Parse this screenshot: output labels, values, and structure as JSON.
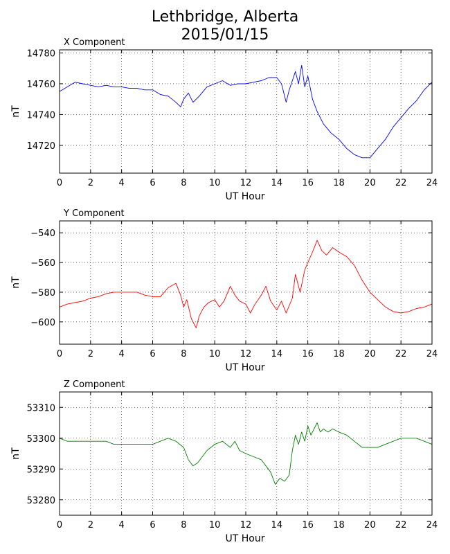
{
  "title_line1": "Lethbridge, Alberta",
  "title_line2": "2015/01/15",
  "chart_data": [
    {
      "type": "line",
      "title": "X Component",
      "xlabel": "UT Hour",
      "ylabel": "nT",
      "xlim": [
        0,
        24
      ],
      "ylim": [
        14702,
        14782
      ],
      "xticks": [
        0,
        2,
        4,
        6,
        8,
        10,
        12,
        14,
        16,
        18,
        20,
        22,
        24
      ],
      "yticks": [
        14720,
        14740,
        14760,
        14780
      ],
      "grid": true,
      "color": "#0000ff",
      "x": [
        0,
        0.5,
        1,
        1.5,
        2,
        2.5,
        3,
        3.5,
        4,
        4.5,
        5,
        5.5,
        6,
        6.5,
        7,
        7.5,
        7.8,
        8,
        8.3,
        8.6,
        9,
        9.5,
        10,
        10.5,
        11,
        11.5,
        12,
        12.5,
        13,
        13.5,
        14,
        14.3,
        14.6,
        14.8,
        15,
        15.2,
        15.4,
        15.6,
        15.8,
        16,
        16.3,
        16.6,
        17,
        17.5,
        18,
        18.5,
        19,
        19.5,
        20,
        20.5,
        21,
        21.5,
        22,
        22.5,
        23,
        23.5,
        24
      ],
      "y": [
        14755,
        14758,
        14761,
        14760,
        14759,
        14758,
        14759,
        14758,
        14758,
        14757,
        14757,
        14756,
        14756,
        14753,
        14752,
        14748,
        14745,
        14750,
        14754,
        14748,
        14752,
        14758,
        14760,
        14762,
        14759,
        14760,
        14760,
        14761,
        14762,
        14764,
        14764,
        14760,
        14748,
        14756,
        14762,
        14768,
        14760,
        14772,
        14758,
        14765,
        14750,
        14742,
        14734,
        14728,
        14724,
        14718,
        14714,
        14712,
        14712,
        14718,
        14724,
        14732,
        14738,
        14744,
        14749,
        14756,
        14761
      ]
    },
    {
      "type": "line",
      "title": "Y Component",
      "xlabel": "UT Hour",
      "ylabel": "nT",
      "xlim": [
        0,
        24
      ],
      "ylim": [
        -615,
        -532
      ],
      "xticks": [
        0,
        2,
        4,
        6,
        8,
        10,
        12,
        14,
        16,
        18,
        20,
        22,
        24
      ],
      "yticks": [
        -540,
        -560,
        -580,
        -600
      ],
      "grid": true,
      "color": "#ff0000",
      "x": [
        0,
        0.5,
        1,
        1.5,
        2,
        2.5,
        3,
        3.5,
        4,
        4.5,
        5,
        5.5,
        6,
        6.5,
        7,
        7.5,
        7.8,
        8,
        8.2,
        8.5,
        8.8,
        9,
        9.3,
        9.6,
        10,
        10.3,
        10.6,
        11,
        11.3,
        11.6,
        12,
        12.3,
        12.6,
        13,
        13.3,
        13.6,
        14,
        14.3,
        14.6,
        15,
        15.2,
        15.5,
        15.8,
        16,
        16.3,
        16.6,
        16.9,
        17.2,
        17.6,
        18,
        18.5,
        19,
        19.5,
        20,
        20.5,
        21,
        21.5,
        22,
        22.5,
        23,
        23.5,
        24
      ],
      "y": [
        -590,
        -588,
        -587,
        -586,
        -584,
        -583,
        -581,
        -580,
        -580,
        -580,
        -580,
        -582,
        -583,
        -583,
        -577,
        -574,
        -582,
        -590,
        -585,
        -598,
        -604,
        -596,
        -590,
        -587,
        -585,
        -590,
        -586,
        -576,
        -582,
        -586,
        -588,
        -594,
        -588,
        -582,
        -576,
        -586,
        -592,
        -586,
        -594,
        -584,
        -568,
        -580,
        -565,
        -560,
        -553,
        -545,
        -552,
        -555,
        -550,
        -553,
        -556,
        -562,
        -572,
        -580,
        -585,
        -590,
        -593,
        -594,
        -593,
        -591,
        -590,
        -588
      ]
    },
    {
      "type": "line",
      "title": "Z Component",
      "xlabel": "UT Hour",
      "ylabel": "nT",
      "xlim": [
        0,
        24
      ],
      "ylim": [
        53275,
        53315
      ],
      "xticks": [
        0,
        2,
        4,
        6,
        8,
        10,
        12,
        14,
        16,
        18,
        20,
        22,
        24
      ],
      "yticks": [
        53280,
        53290,
        53300,
        53310
      ],
      "grid": true,
      "color": "#007f00",
      "x": [
        0,
        0.5,
        1,
        1.5,
        2,
        2.5,
        3,
        3.5,
        4,
        4.5,
        5,
        5.5,
        6,
        6.5,
        7,
        7.5,
        8,
        8.3,
        8.6,
        8.9,
        9.2,
        9.5,
        10,
        10.5,
        11,
        11.3,
        11.6,
        12,
        12.5,
        13,
        13.3,
        13.6,
        13.9,
        14.2,
        14.5,
        14.8,
        15,
        15.2,
        15.4,
        15.6,
        15.8,
        16,
        16.2,
        16.4,
        16.6,
        16.8,
        17,
        17.3,
        17.6,
        18,
        18.5,
        19,
        19.5,
        20,
        20.5,
        21,
        21.5,
        22,
        22.5,
        23,
        23.5,
        24
      ],
      "y": [
        53300,
        53299,
        53299,
        53299,
        53299,
        53299,
        53299,
        53298,
        53298,
        53298,
        53298,
        53298,
        53298,
        53299,
        53300,
        53299,
        53297,
        53293,
        53291,
        53292,
        53294,
        53296,
        53298,
        53299,
        53297,
        53299,
        53296,
        53295,
        53294,
        53293,
        53291,
        53289,
        53285,
        53287,
        53286,
        53288,
        53296,
        53301,
        53298,
        53302,
        53299,
        53304,
        53301,
        53303,
        53305,
        53302,
        53303,
        53302,
        53303,
        53302,
        53301,
        53299,
        53297,
        53297,
        53297,
        53298,
        53299,
        53300,
        53300,
        53300,
        53299,
        53298
      ]
    }
  ]
}
